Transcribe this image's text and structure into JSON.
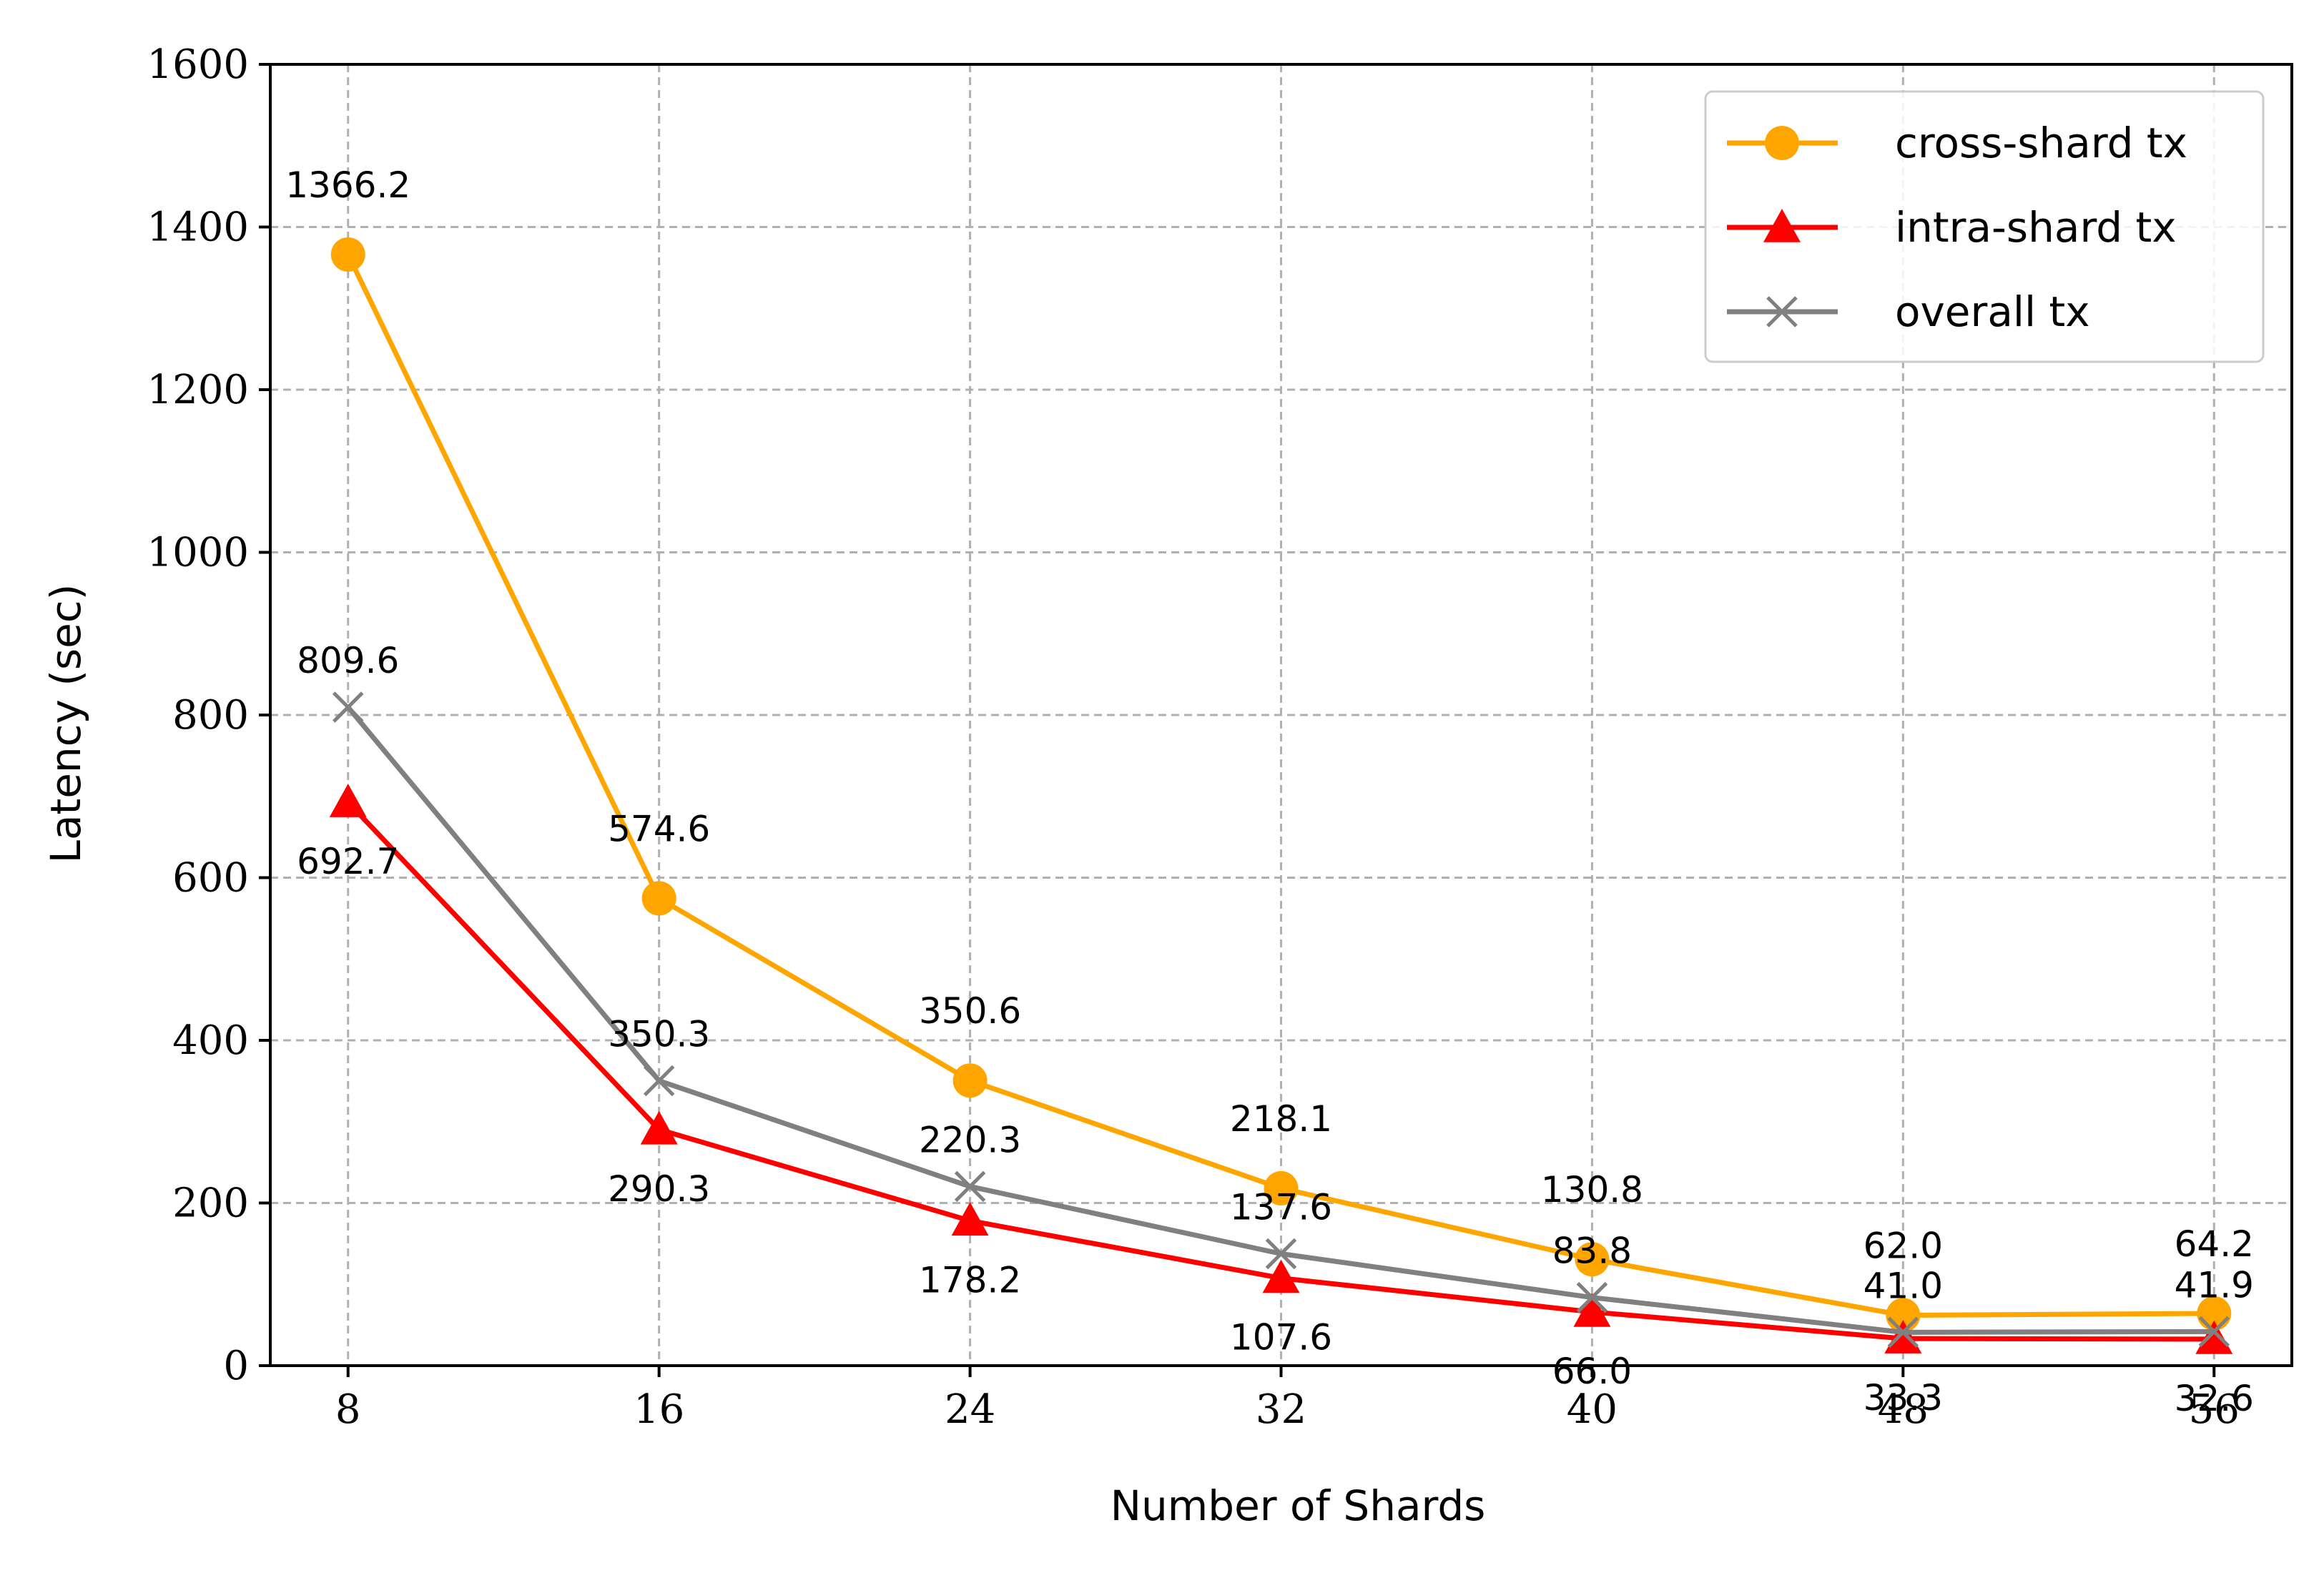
{
  "chart_data": {
    "type": "line",
    "xlabel": "Number of Shards",
    "ylabel": "Latency (sec)",
    "x": [
      8,
      16,
      24,
      32,
      40,
      48,
      56
    ],
    "x_ticks": [
      "8",
      "16",
      "24",
      "32",
      "40",
      "48",
      "56"
    ],
    "ylim": [
      0,
      1600
    ],
    "y_ticks": [
      "0",
      "200",
      "400",
      "600",
      "800",
      "1000",
      "1200",
      "1400",
      "1600"
    ],
    "grid": true,
    "legend_position": "top-right",
    "series": [
      {
        "name": "cross-shard tx",
        "marker": "circle",
        "color": "#FFA500",
        "values": [
          1366.2,
          574.6,
          350.6,
          218.1,
          130.8,
          62.0,
          64.2
        ],
        "labels": [
          "1366.2",
          "574.6",
          "350.6",
          "218.1",
          "130.8",
          "62.0",
          "64.2"
        ]
      },
      {
        "name": "intra-shard tx",
        "marker": "triangle",
        "color": "#FF0000",
        "values": [
          692.7,
          290.3,
          178.2,
          107.6,
          66.0,
          33.3,
          32.6
        ],
        "labels": [
          "692.7",
          "290.3",
          "178.2",
          "107.6",
          "66.0",
          "33.3",
          "32.6"
        ]
      },
      {
        "name": "overall tx",
        "marker": "x",
        "color": "#808080",
        "values": [
          809.6,
          350.3,
          220.3,
          137.6,
          83.8,
          41.0,
          41.9
        ],
        "labels": [
          "809.6",
          "350.3",
          "220.3",
          "137.6",
          "83.8",
          "41.0",
          "41.9"
        ]
      }
    ]
  }
}
